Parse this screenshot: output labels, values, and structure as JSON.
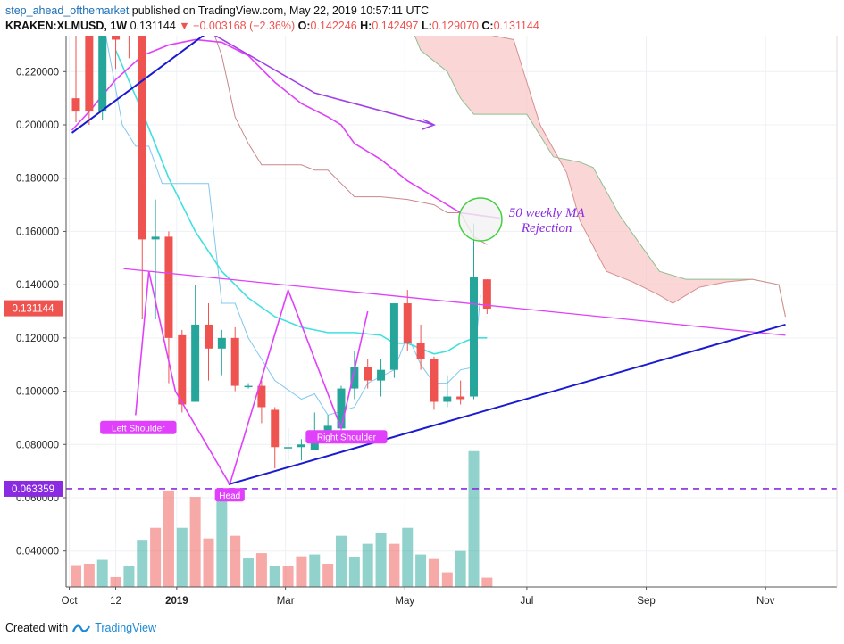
{
  "header": {
    "author": "step_ahead_ofthemarket",
    "published": "published on TradingView.com, May 22, 2019 10:57:11 UTC",
    "symbol": "KRAKEN:XLMUSD, 1W",
    "last": "0.131144",
    "change": "−0.003168 (−2.36%)",
    "o_label": "O:",
    "o_value": "0.142246",
    "h_label": "H:",
    "h_value": "0.142497",
    "l_label": "L:",
    "l_value": "0.129070",
    "c_label": "C:",
    "c_value": "0.131144"
  },
  "footer": {
    "created_with": "Created with",
    "brand": "TradingView"
  },
  "colors": {
    "up": "#26a69a",
    "down": "#ef5350",
    "magenta": "#e040fb",
    "purple": "#a040e6",
    "blue": "#1a1ad0",
    "cyan": "#40e0e0",
    "light_blue": "#80c8f0",
    "cloud": "#f8c8c8",
    "price_tag": "#ef5350",
    "level_tag": "#8a2be2"
  },
  "chart_data": {
    "type": "candlestick",
    "ylim": [
      0.0265,
      0.2335
    ],
    "y_ticks": [
      "0.040000",
      "0.060000",
      "0.080000",
      "0.100000",
      "0.120000",
      "0.140000",
      "0.160000",
      "0.180000",
      "0.200000",
      "0.220000"
    ],
    "x_ticks": [
      {
        "label": "Oct",
        "index": -0.5
      },
      {
        "label": "12",
        "index": 3
      },
      {
        "label": "2019",
        "index": 7.6
      },
      {
        "label": "Mar",
        "index": 15.8
      },
      {
        "label": "May",
        "index": 24.8
      },
      {
        "label": "Jul",
        "index": 34
      },
      {
        "label": "Sep",
        "index": 43
      },
      {
        "label": "Nov",
        "index": 52
      }
    ],
    "candles": [
      {
        "o": 0.21,
        "h": 0.24,
        "l": 0.201,
        "c": 0.205
      },
      {
        "o": 0.235,
        "h": 0.24,
        "l": 0.2,
        "c": 0.205
      },
      {
        "o": 0.205,
        "h": 0.24,
        "l": 0.202,
        "c": 0.235
      },
      {
        "o": 0.235,
        "h": 0.24,
        "l": 0.221,
        "c": 0.232
      },
      {
        "o": 0.235,
        "h": 0.24,
        "l": 0.225,
        "c": 0.234
      },
      {
        "o": 0.235,
        "h": 0.24,
        "l": 0.127,
        "c": 0.157
      },
      {
        "o": 0.157,
        "h": 0.172,
        "l": 0.127,
        "c": 0.158
      },
      {
        "o": 0.158,
        "h": 0.16,
        "l": 0.103,
        "c": 0.12
      },
      {
        "o": 0.121,
        "h": 0.123,
        "l": 0.092,
        "c": 0.095
      },
      {
        "o": 0.096,
        "h": 0.14,
        "l": 0.096,
        "c": 0.125
      },
      {
        "o": 0.125,
        "h": 0.133,
        "l": 0.104,
        "c": 0.116
      },
      {
        "o": 0.116,
        "h": 0.123,
        "l": 0.106,
        "c": 0.12
      },
      {
        "o": 0.12,
        "h": 0.124,
        "l": 0.1,
        "c": 0.102
      },
      {
        "o": 0.102,
        "h": 0.103,
        "l": 0.101,
        "c": 0.102
      },
      {
        "o": 0.102,
        "h": 0.104,
        "l": 0.088,
        "c": 0.094
      },
      {
        "o": 0.093,
        "h": 0.094,
        "l": 0.071,
        "c": 0.079
      },
      {
        "o": 0.079,
        "h": 0.086,
        "l": 0.074,
        "c": 0.079
      },
      {
        "o": 0.079,
        "h": 0.082,
        "l": 0.074,
        "c": 0.08
      },
      {
        "o": 0.078,
        "h": 0.092,
        "l": 0.078,
        "c": 0.082
      },
      {
        "o": 0.082,
        "h": 0.091,
        "l": 0.081,
        "c": 0.087
      },
      {
        "o": 0.086,
        "h": 0.102,
        "l": 0.082,
        "c": 0.101
      },
      {
        "o": 0.101,
        "h": 0.115,
        "l": 0.097,
        "c": 0.109
      },
      {
        "o": 0.109,
        "h": 0.112,
        "l": 0.101,
        "c": 0.104
      },
      {
        "o": 0.104,
        "h": 0.112,
        "l": 0.098,
        "c": 0.108
      },
      {
        "o": 0.108,
        "h": 0.131,
        "l": 0.105,
        "c": 0.133
      },
      {
        "o": 0.133,
        "h": 0.138,
        "l": 0.115,
        "c": 0.118
      },
      {
        "o": 0.118,
        "h": 0.125,
        "l": 0.108,
        "c": 0.112
      },
      {
        "o": 0.112,
        "h": 0.113,
        "l": 0.093,
        "c": 0.096
      },
      {
        "o": 0.096,
        "h": 0.106,
        "l": 0.094,
        "c": 0.098
      },
      {
        "o": 0.098,
        "h": 0.104,
        "l": 0.095,
        "c": 0.097
      },
      {
        "o": 0.098,
        "h": 0.163,
        "l": 0.097,
        "c": 0.143
      },
      {
        "o": 0.142,
        "h": 0.142,
        "l": 0.129,
        "c": 0.131
      }
    ],
    "volume": [
      {
        "v": 0.0082,
        "dir": "down"
      },
      {
        "v": 0.0087,
        "dir": "down"
      },
      {
        "v": 0.0102,
        "dir": "up"
      },
      {
        "v": 0.0037,
        "dir": "down"
      },
      {
        "v": 0.008,
        "dir": "up"
      },
      {
        "v": 0.0177,
        "dir": "up"
      },
      {
        "v": 0.0222,
        "dir": "down"
      },
      {
        "v": 0.0362,
        "dir": "down"
      },
      {
        "v": 0.0222,
        "dir": "up"
      },
      {
        "v": 0.0338,
        "dir": "down"
      },
      {
        "v": 0.0182,
        "dir": "down"
      },
      {
        "v": 0.0365,
        "dir": "up"
      },
      {
        "v": 0.0192,
        "dir": "down"
      },
      {
        "v": 0.0107,
        "dir": "up"
      },
      {
        "v": 0.0127,
        "dir": "down"
      },
      {
        "v": 0.0077,
        "dir": "up"
      },
      {
        "v": 0.0077,
        "dir": "down"
      },
      {
        "v": 0.0115,
        "dir": "down"
      },
      {
        "v": 0.0122,
        "dir": "up"
      },
      {
        "v": 0.0087,
        "dir": "down"
      },
      {
        "v": 0.0192,
        "dir": "up"
      },
      {
        "v": 0.0112,
        "dir": "up"
      },
      {
        "v": 0.0162,
        "dir": "up"
      },
      {
        "v": 0.0202,
        "dir": "up"
      },
      {
        "v": 0.0162,
        "dir": "down"
      },
      {
        "v": 0.0222,
        "dir": "up"
      },
      {
        "v": 0.0122,
        "dir": "up"
      },
      {
        "v": 0.0105,
        "dir": "down"
      },
      {
        "v": 0.0055,
        "dir": "down"
      },
      {
        "v": 0.0135,
        "dir": "up"
      },
      {
        "v": 0.051,
        "dir": "up"
      },
      {
        "v": 0.0035,
        "dir": "down"
      }
    ],
    "price_tag": "0.131144",
    "level_tag": "0.063359",
    "level_value": 0.063359,
    "annotation": [
      "50 weekly MA",
      "Rejection"
    ],
    "labels": {
      "left_shoulder": "Left Shoulder",
      "head": "Head",
      "right_shoulder": "Right Shoulder"
    },
    "lines": {
      "ma_cyan": [
        [
          3,
          0.228
        ],
        [
          5,
          0.205
        ],
        [
          7,
          0.18
        ],
        [
          9,
          0.16
        ],
        [
          11,
          0.145
        ],
        [
          13,
          0.135
        ],
        [
          15,
          0.128
        ],
        [
          17,
          0.124
        ],
        [
          19,
          0.122
        ],
        [
          21,
          0.122
        ],
        [
          23,
          0.121
        ],
        [
          24,
          0.118
        ],
        [
          25,
          0.118
        ],
        [
          26,
          0.116
        ],
        [
          27,
          0.114
        ],
        [
          28,
          0.115
        ],
        [
          29,
          0.118
        ],
        [
          30,
          0.12
        ],
        [
          31,
          0.12
        ]
      ],
      "ma_magenta": [
        [
          -0.3,
          0.198
        ],
        [
          1,
          0.205
        ],
        [
          3,
          0.217
        ],
        [
          5,
          0.226
        ],
        [
          7,
          0.23
        ],
        [
          9,
          0.232
        ],
        [
          11,
          0.231
        ],
        [
          13,
          0.226
        ],
        [
          15,
          0.216
        ],
        [
          17,
          0.208
        ],
        [
          19,
          0.203
        ],
        [
          20,
          0.2
        ],
        [
          21,
          0.193
        ],
        [
          23,
          0.187
        ],
        [
          25,
          0.179
        ],
        [
          27,
          0.173
        ],
        [
          29,
          0.167
        ],
        [
          30.5,
          0.166
        ],
        [
          32,
          0.165
        ]
      ],
      "tenkan": [
        [
          2.2,
          0.235
        ],
        [
          3.5,
          0.2
        ],
        [
          4.5,
          0.192
        ],
        [
          5.5,
          0.192
        ],
        [
          6.5,
          0.178
        ],
        [
          7.5,
          0.178
        ],
        [
          9,
          0.178
        ],
        [
          10,
          0.178
        ],
        [
          11,
          0.133
        ],
        [
          12,
          0.133
        ],
        [
          13,
          0.12
        ],
        [
          15,
          0.104
        ],
        [
          17,
          0.097
        ],
        [
          18,
          0.099
        ],
        [
          19,
          0.091
        ],
        [
          21,
          0.094
        ],
        [
          22,
          0.103
        ],
        [
          24,
          0.108
        ],
        [
          25,
          0.121
        ],
        [
          26,
          0.11
        ],
        [
          27,
          0.103
        ],
        [
          28,
          0.103
        ],
        [
          29,
          0.108
        ],
        [
          30,
          0.109
        ],
        [
          30.5,
          0.136
        ]
      ],
      "kijun": [
        [
          9.5,
          0.24
        ],
        [
          10,
          0.24
        ],
        [
          11,
          0.226
        ],
        [
          12,
          0.203
        ],
        [
          13,
          0.193
        ],
        [
          14,
          0.185
        ],
        [
          17,
          0.185
        ],
        [
          18,
          0.183
        ],
        [
          19,
          0.183
        ],
        [
          21,
          0.173
        ],
        [
          23,
          0.173
        ],
        [
          25,
          0.172
        ],
        [
          27,
          0.17
        ],
        [
          28,
          0.167
        ],
        [
          29,
          0.167
        ],
        [
          30,
          0.158
        ],
        [
          31,
          0.155
        ]
      ],
      "cloud_upper": [
        [
          25,
          0.24
        ],
        [
          26,
          0.228
        ],
        [
          28,
          0.22
        ],
        [
          29,
          0.21
        ],
        [
          30,
          0.204
        ],
        [
          33,
          0.204
        ],
        [
          34,
          0.204
        ],
        [
          35,
          0.196
        ],
        [
          36,
          0.188
        ],
        [
          38,
          0.186
        ],
        [
          39,
          0.184
        ],
        [
          41,
          0.166
        ],
        [
          43,
          0.152
        ],
        [
          44,
          0.145
        ],
        [
          46,
          0.142
        ],
        [
          48,
          0.142
        ],
        [
          51,
          0.142
        ],
        [
          53,
          0.14
        ],
        [
          53.5,
          0.128
        ]
      ],
      "cloud_lower": [
        [
          25,
          0.24
        ],
        [
          27,
          0.238
        ],
        [
          29,
          0.236
        ],
        [
          31,
          0.234
        ],
        [
          33,
          0.232
        ],
        [
          35,
          0.2
        ],
        [
          37,
          0.182
        ],
        [
          38,
          0.164
        ],
        [
          40,
          0.145
        ],
        [
          42,
          0.141
        ],
        [
          44,
          0.136
        ],
        [
          45,
          0.133
        ],
        [
          47,
          0.139
        ],
        [
          49,
          0.141
        ],
        [
          51,
          0.142
        ],
        [
          53,
          0.14
        ],
        [
          53.5,
          0.128
        ]
      ],
      "neckline": [
        [
          3.6,
          0.146
        ],
        [
          53.5,
          0.121
        ]
      ],
      "support": [
        [
          11.5,
          0.065
        ],
        [
          53.5,
          0.125
        ]
      ],
      "trend_top": [
        [
          -0.3,
          0.197
        ],
        [
          10,
          0.235
        ]
      ],
      "arrow": [
        [
          10,
          0.235
        ],
        [
          18,
          0.212
        ],
        [
          27,
          0.2
        ]
      ],
      "pattern": [
        [
          4.5,
          0.091
        ],
        [
          5.5,
          0.145
        ],
        [
          7.5,
          0.1
        ],
        [
          11.6,
          0.065
        ],
        [
          16,
          0.138
        ],
        [
          20,
          0.086
        ],
        [
          22,
          0.13
        ]
      ]
    }
  }
}
